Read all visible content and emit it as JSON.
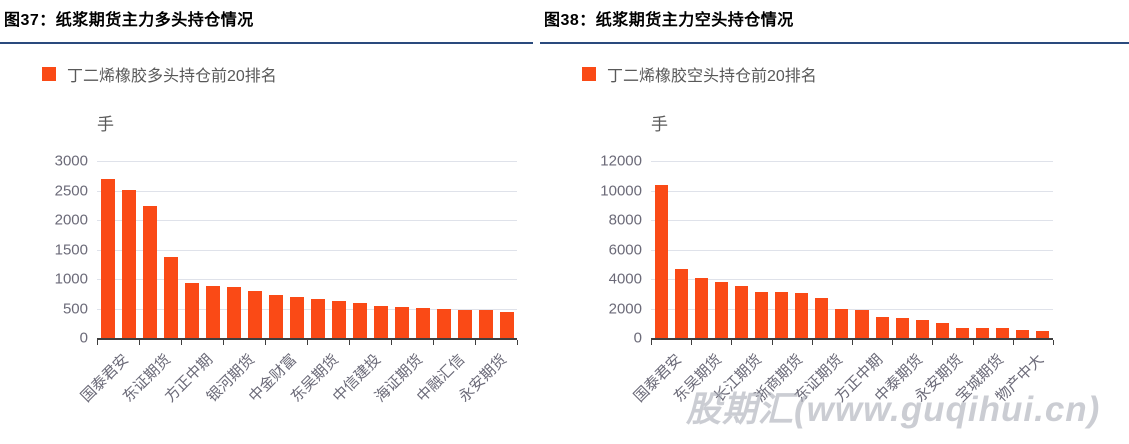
{
  "watermark": "股期汇(www.guqihui.cn)",
  "colors": {
    "bar": "#fa4a16",
    "gridline": "#dfe2ea",
    "axis_text": "#6b6a78",
    "legend_text": "#595959",
    "title_text": "#000000",
    "title_underline": "#2a4a7d",
    "axis_line": "#3f3f3f",
    "watermark_text": "#a5a8b4"
  },
  "chart_data": [
    {
      "type": "bar",
      "figure_label": "图37：纸浆期货主力多头持仓情况",
      "legend": "丁二烯橡胶多头持仓前20排名",
      "unit_label": "手",
      "ylim": [
        0,
        3000
      ],
      "y_ticks": [
        3000,
        2500,
        2000,
        1500,
        1000,
        500,
        0
      ],
      "grid": "on",
      "legend_position": "top-left",
      "x_label_interval": 2,
      "categories": [
        "国泰君安",
        "东证期货",
        "方正中期",
        "银河期货",
        "中金财富",
        "东吴期货",
        "中信建投",
        "海证期货",
        "中融汇信",
        "永安期货"
      ],
      "values": [
        2690,
        2510,
        2230,
        1380,
        940,
        875,
        870,
        790,
        735,
        690,
        660,
        630,
        600,
        545,
        525,
        510,
        500,
        480,
        475,
        440
      ]
    },
    {
      "type": "bar",
      "figure_label": "图38：纸浆期货主力空头持仓情况",
      "legend": "丁二烯橡胶空头持仓前20排名",
      "unit_label": "手",
      "ylim": [
        0,
        12000
      ],
      "y_ticks": [
        12000,
        10000,
        8000,
        6000,
        4000,
        2000,
        0
      ],
      "grid": "on",
      "legend_position": "top-left",
      "x_label_interval": 2,
      "categories": [
        "国泰君安",
        "东吴期货",
        "长江期货",
        "浙商期货",
        "东证期货",
        "方正中期",
        "中泰期货",
        "永安期货",
        "宝城期货",
        "物产中大"
      ],
      "values": [
        10400,
        4700,
        4100,
        3800,
        3550,
        3100,
        3100,
        3050,
        2700,
        2000,
        1900,
        1400,
        1350,
        1250,
        1050,
        700,
        650,
        650,
        520,
        450
      ]
    }
  ]
}
